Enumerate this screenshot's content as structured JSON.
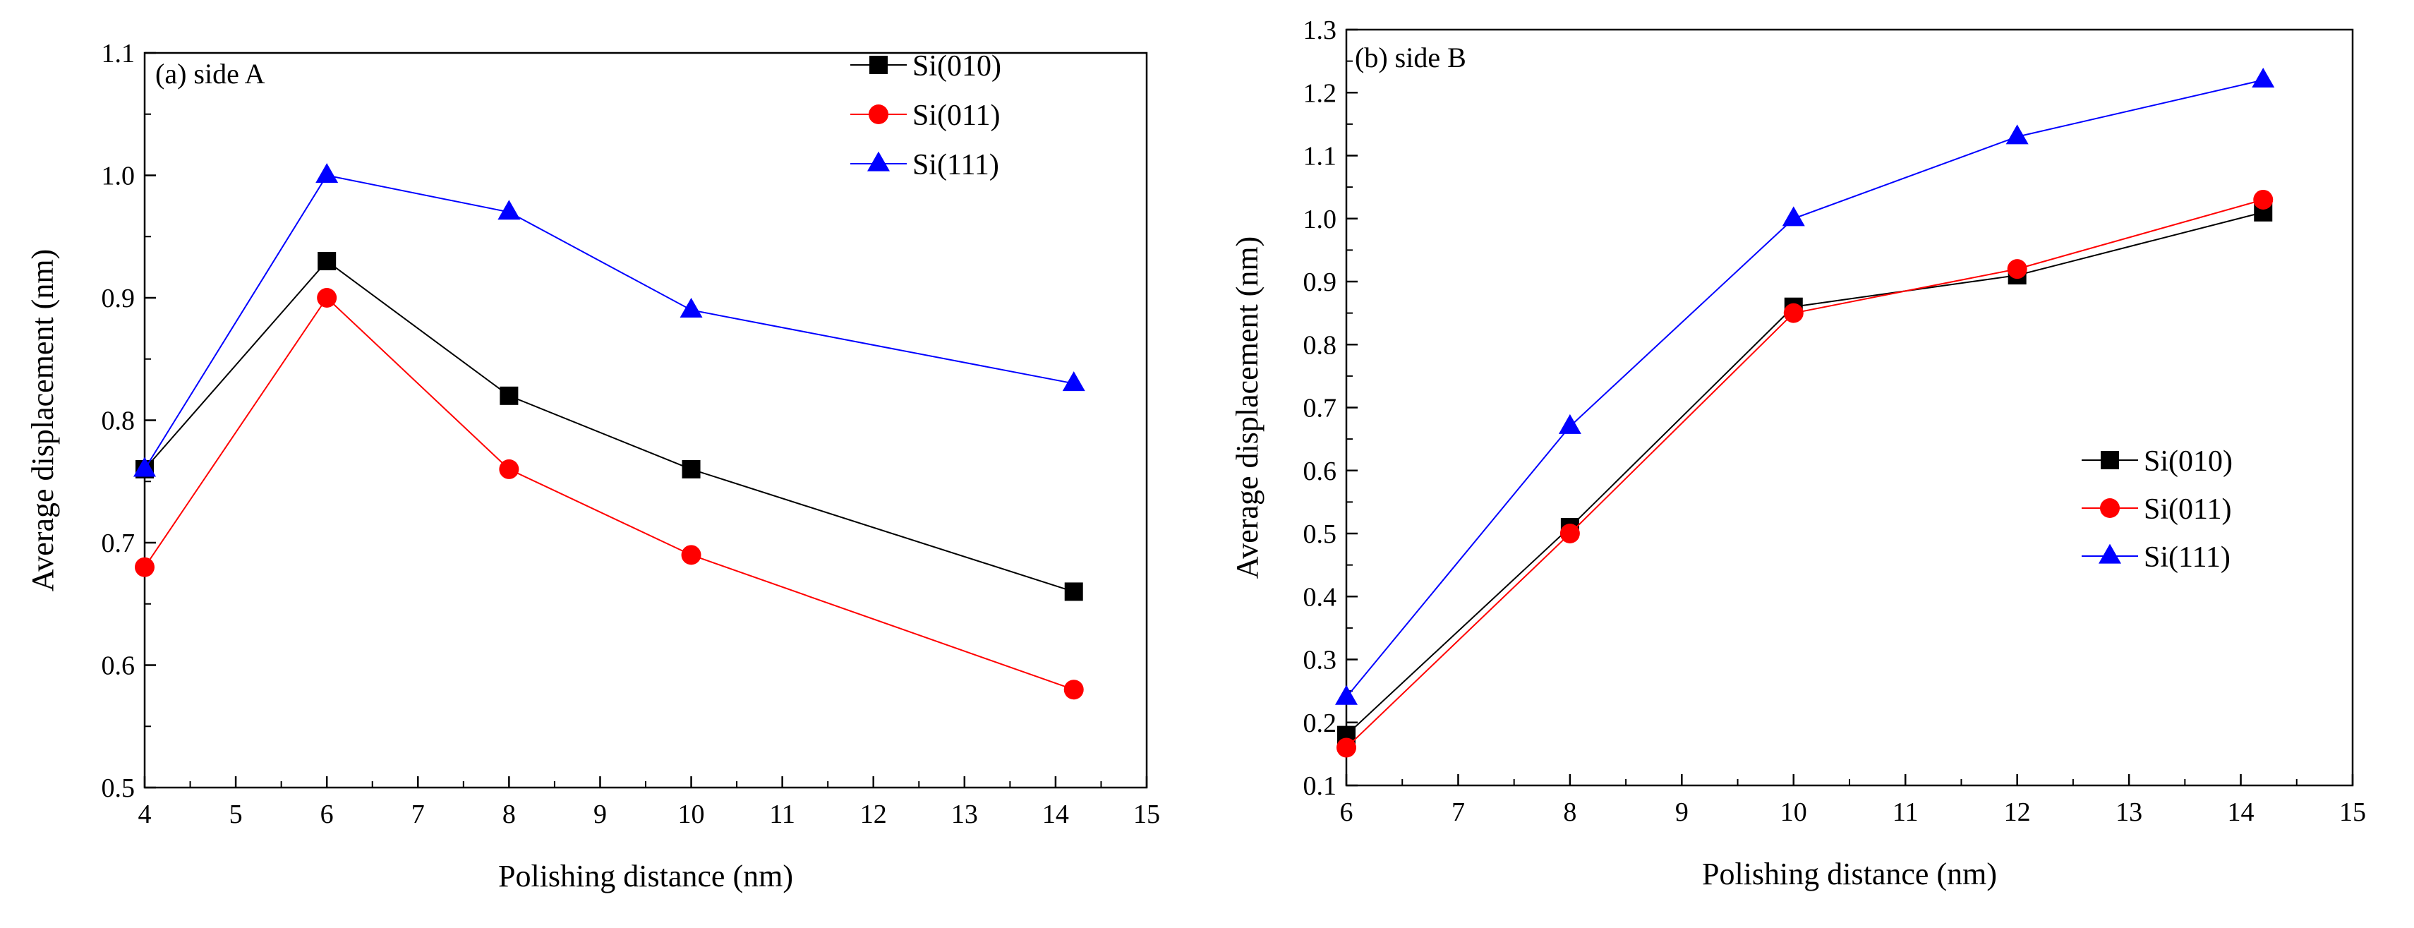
{
  "chart_data": [
    {
      "type": "line",
      "title": "(a) side A",
      "xlabel": "Polishing distance (nm)",
      "ylabel": "Average displacement (nm)",
      "xlim": [
        4,
        15
      ],
      "ylim": [
        0.5,
        1.1
      ],
      "xticks": [
        4,
        5,
        6,
        7,
        8,
        9,
        10,
        11,
        12,
        13,
        14,
        15
      ],
      "yticks": [
        0.5,
        0.6,
        0.7,
        0.8,
        0.9,
        1.0,
        1.1
      ],
      "ytick_labels": [
        "0.5",
        "0.6",
        "0.7",
        "0.8",
        "0.9",
        "1.0",
        "1.1"
      ],
      "grid": false,
      "legend_position": "top-right",
      "x": [
        4,
        6,
        8,
        10,
        14.2
      ],
      "series": [
        {
          "name": "Si(010)",
          "color": "#000000",
          "marker": "square",
          "values": [
            0.76,
            0.93,
            0.82,
            0.76,
            0.66
          ]
        },
        {
          "name": "Si(011)",
          "color": "#ff0000",
          "marker": "circle",
          "values": [
            0.68,
            0.9,
            0.76,
            0.69,
            0.58
          ]
        },
        {
          "name": "Si(111)",
          "color": "#0000ff",
          "marker": "triangle",
          "values": [
            0.76,
            1.0,
            0.97,
            0.89,
            0.83
          ]
        }
      ]
    },
    {
      "type": "line",
      "title": "(b) side B",
      "xlabel": "Polishing distance (nm)",
      "ylabel": "Average displacement (nm)",
      "xlim": [
        6,
        15
      ],
      "ylim": [
        0.1,
        1.3
      ],
      "xticks": [
        6,
        7,
        8,
        9,
        10,
        11,
        12,
        13,
        14,
        15
      ],
      "yticks": [
        0.1,
        0.2,
        0.3,
        0.4,
        0.5,
        0.6,
        0.7,
        0.8,
        0.9,
        1.0,
        1.1,
        1.2,
        1.3
      ],
      "ytick_labels": [
        "0.1",
        "0.2",
        "0.3",
        "0.4",
        "0.5",
        "0.6",
        "0.7",
        "0.8",
        "0.9",
        "1.0",
        "1.1",
        "1.2",
        "1.3"
      ],
      "grid": false,
      "legend_position": "center-right",
      "x": [
        6,
        8,
        10,
        12,
        14.2
      ],
      "series": [
        {
          "name": "Si(010)",
          "color": "#000000",
          "marker": "square",
          "values": [
            0.18,
            0.51,
            0.86,
            0.91,
            1.01
          ]
        },
        {
          "name": "Si(011)",
          "color": "#ff0000",
          "marker": "circle",
          "values": [
            0.16,
            0.5,
            0.85,
            0.92,
            1.03
          ]
        },
        {
          "name": "Si(111)",
          "color": "#0000ff",
          "marker": "triangle",
          "values": [
            0.24,
            0.67,
            1.0,
            1.13,
            1.22
          ]
        }
      ]
    }
  ]
}
